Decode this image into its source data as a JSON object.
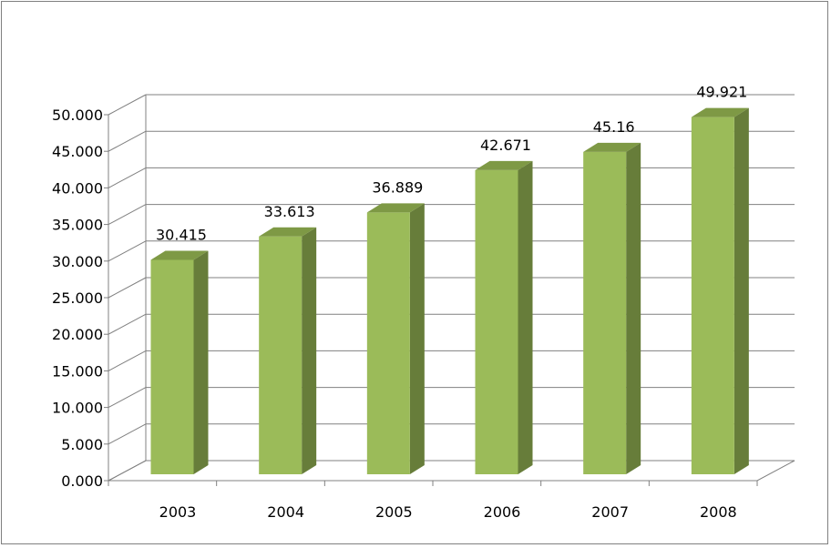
{
  "chart_data": {
    "type": "bar",
    "title": "",
    "xlabel": "",
    "ylabel": "",
    "categories": [
      "2003",
      "2004",
      "2005",
      "2006",
      "2007",
      "2008"
    ],
    "values": [
      30.415,
      33.613,
      36.889,
      42.671,
      45.16,
      49.921
    ],
    "data_labels": [
      "30.415",
      "33.613",
      "36.889",
      "42.671",
      "45.16",
      "49.921"
    ],
    "y_ticks": [
      0,
      5,
      10,
      15,
      20,
      25,
      30,
      35,
      40,
      45,
      50
    ],
    "y_tick_labels": [
      "0.000",
      "5.000",
      "10.000",
      "15.000",
      "20.000",
      "25.000",
      "30.000",
      "35.000",
      "40.000",
      "45.000",
      "50.000"
    ],
    "ylim": [
      0,
      50
    ],
    "grid": true,
    "legend": "none",
    "style": "3d-column",
    "colors": {
      "bar_front": "#9BBB59",
      "bar_top": "#7E9945",
      "bar_side": "#677D3A",
      "grid": "#808080"
    }
  }
}
